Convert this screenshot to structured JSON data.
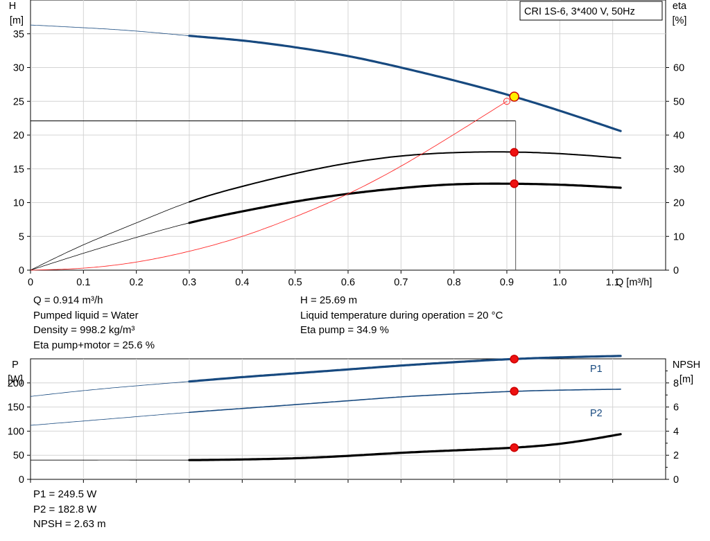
{
  "header": {
    "title": "CRI 1S-6, 3*400 V, 50Hz"
  },
  "chart_data": [
    {
      "type": "line",
      "xlabel": "Q [m³/h]",
      "ylabel_left": [
        "H",
        "[m]"
      ],
      "ylabel_right": [
        "eta",
        "[%]"
      ],
      "xlim": [
        0,
        1.2
      ],
      "ylim_left": [
        0,
        40
      ],
      "ylim_right": [
        0,
        80
      ],
      "x_ticks": [
        "0",
        "0.1",
        "0.2",
        "0.3",
        "0.4",
        "0.5",
        "0.6",
        "0.7",
        "0.8",
        "0.9",
        "1.0",
        "1.1"
      ],
      "y_ticks_left": [
        "0",
        "5",
        "10",
        "15",
        "20",
        "25",
        "30",
        "35"
      ],
      "y_ticks_right": [
        "0",
        "10",
        "20",
        "30",
        "40",
        "50",
        "60"
      ],
      "grid": true,
      "duty_point": {
        "q": 0.914,
        "h": 25.69
      },
      "series": [
        {
          "color": "#17497f",
          "axis": "left",
          "width": 3.2,
          "thin_until": 0.3,
          "end": 1.115,
          "x": [
            0,
            0.1,
            0.2,
            0.3,
            0.4,
            0.5,
            0.6,
            0.7,
            0.8,
            0.9,
            1.0,
            1.115
          ],
          "values": [
            36.3,
            35.9,
            35.4,
            34.7,
            34.0,
            33.0,
            31.7,
            30.0,
            28.1,
            26.0,
            23.6,
            20.6
          ],
          "marker": {
            "x": 0.914,
            "y": 25.69,
            "fill": "#ffee00",
            "stroke": "#cc0000"
          }
        },
        {
          "color": "#000000",
          "axis": "right",
          "width": 2.0,
          "thin_until": 0.3,
          "end": 1.115,
          "x": [
            0,
            0.1,
            0.2,
            0.3,
            0.4,
            0.5,
            0.6,
            0.7,
            0.8,
            0.9,
            1.0,
            1.115
          ],
          "values": [
            0,
            7.5,
            14.0,
            20.2,
            24.8,
            28.6,
            31.7,
            33.8,
            34.8,
            35.0,
            34.5,
            33.2
          ],
          "marker": {
            "x": 0.914,
            "y": 34.9,
            "fill": "#ee1111",
            "stroke": "#cc0000"
          }
        },
        {
          "color": "#000000",
          "axis": "right",
          "width": 3.2,
          "thin_until": 0.3,
          "end": 1.115,
          "x": [
            0,
            0.1,
            0.2,
            0.3,
            0.4,
            0.5,
            0.6,
            0.7,
            0.8,
            0.9,
            1.0,
            1.115
          ],
          "values": [
            0,
            5.0,
            9.7,
            14.0,
            17.4,
            20.3,
            22.6,
            24.3,
            25.4,
            25.6,
            25.3,
            24.4
          ],
          "marker": {
            "x": 0.914,
            "y": 25.6,
            "fill": "#ee1111",
            "stroke": "#cc0000"
          }
        },
        {
          "color": "#ff2a2a",
          "axis": "left",
          "width": 0.9,
          "thin_until": 0,
          "end": 0.9,
          "x": [
            0,
            0.1,
            0.2,
            0.3,
            0.4,
            0.5,
            0.6,
            0.7,
            0.8,
            0.9
          ],
          "values": [
            0,
            0.3,
            1.2,
            2.8,
            5.0,
            7.9,
            11.3,
            15.4,
            20.1,
            25.0
          ],
          "marker": {
            "x": 0.9,
            "y": 25.0,
            "fill": "none",
            "stroke": "#ff2a2a"
          }
        }
      ]
    },
    {
      "type": "line",
      "ylabel_left": [
        "P",
        "[W]"
      ],
      "ylabel_right": [
        "NPSH",
        "[m]"
      ],
      "xlim": [
        0,
        1.2
      ],
      "ylim_left": [
        0,
        250
      ],
      "ylim_right": [
        0,
        10
      ],
      "y_ticks_left": [
        "0",
        "50",
        "100",
        "150",
        "200"
      ],
      "y_ticks_right": [
        "0",
        "2",
        "4",
        "6",
        "8"
      ],
      "grid": true,
      "series": [
        {
          "name": "P1",
          "color": "#17497f",
          "axis": "left",
          "width": 3.2,
          "thin_until": 0.3,
          "end": 1.115,
          "x": [
            0,
            0.1,
            0.2,
            0.3,
            0.4,
            0.5,
            0.6,
            0.7,
            0.8,
            0.9,
            1.0,
            1.115
          ],
          "values": [
            172,
            184,
            194,
            203,
            212,
            220,
            228,
            236,
            243,
            249,
            253,
            256
          ],
          "marker": {
            "x": 0.914,
            "y": 249.5,
            "fill": "#ee1111",
            "stroke": "#cc0000"
          }
        },
        {
          "name": "P2",
          "color": "#17497f",
          "axis": "left",
          "width": 1.6,
          "thin_until": 0.3,
          "end": 1.115,
          "x": [
            0,
            0.1,
            0.2,
            0.3,
            0.4,
            0.5,
            0.6,
            0.7,
            0.8,
            0.9,
            1.0,
            1.115
          ],
          "values": [
            112,
            121,
            130,
            139,
            147,
            155,
            163,
            171,
            177,
            182,
            185,
            187
          ],
          "marker": {
            "x": 0.914,
            "y": 182.8,
            "fill": "#ee1111",
            "stroke": "#cc0000"
          }
        },
        {
          "color": "#000000",
          "axis": "right",
          "width": 3.2,
          "thin_until": 0.3,
          "end": 1.115,
          "x": [
            0,
            0.1,
            0.2,
            0.3,
            0.4,
            0.5,
            0.6,
            0.7,
            0.8,
            0.9,
            1.0,
            1.115
          ],
          "values": [
            1.6,
            1.6,
            1.6,
            1.6,
            1.65,
            1.75,
            1.95,
            2.2,
            2.4,
            2.6,
            2.95,
            3.75
          ],
          "marker": {
            "x": 0.914,
            "y": 2.63,
            "fill": "#ee1111",
            "stroke": "#cc0000"
          }
        }
      ]
    }
  ],
  "results_top": {
    "left": [
      "Q = 0.914 m³/h",
      "Pumped liquid = Water",
      "Density = 998.2 kg/m³",
      "Eta pump+motor = 25.6 %"
    ],
    "right": [
      "H = 25.69 m",
      "Liquid temperature during operation = 20 °C",
      "Eta pump = 34.9 %"
    ]
  },
  "results_bottom": [
    "P1 = 249.5 W",
    "P2 = 182.8 W",
    "NPSH = 2.63 m"
  ]
}
